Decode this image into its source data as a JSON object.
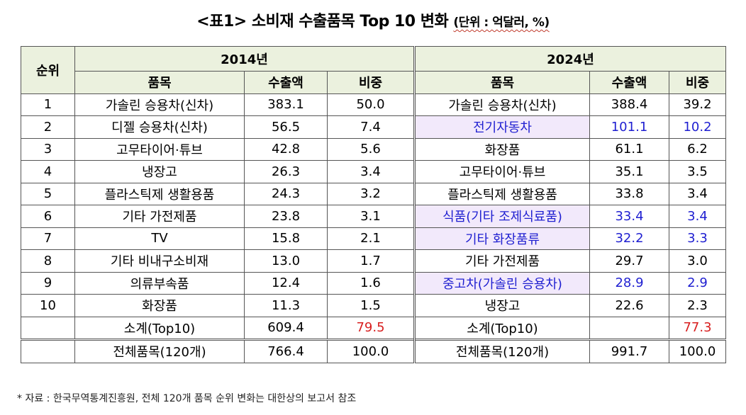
{
  "title": {
    "main": "<표1> 소비재 수출품목 Top 10 변화",
    "unit": "(단위 : 억달러, %)"
  },
  "headers": {
    "rank": "순위",
    "year_2014": "2014년",
    "year_2024": "2024년",
    "item": "품목",
    "export_amount": "수출액",
    "share": "비중"
  },
  "rows": [
    {
      "rank": "1",
      "item_2014": "가솔린 승용차(신차)",
      "amount_2014": "383.1",
      "share_2014": "50.0",
      "item_2024": "가솔린 승용차(신차)",
      "amount_2024": "388.4",
      "share_2024": "39.2"
    },
    {
      "rank": "2",
      "item_2014": "디젤 승용차(신차)",
      "amount_2014": "56.5",
      "share_2014": "7.4",
      "item_2024": "전기자동차",
      "amount_2024": "101.1",
      "share_2024": "10.2"
    },
    {
      "rank": "3",
      "item_2014": "고무타이어·튜브",
      "amount_2014": "42.8",
      "share_2014": "5.6",
      "item_2024": "화장품",
      "amount_2024": "61.1",
      "share_2024": "6.2"
    },
    {
      "rank": "4",
      "item_2014": "냉장고",
      "amount_2014": "26.3",
      "share_2014": "3.4",
      "item_2024": "고무타이어·튜브",
      "amount_2024": "35.1",
      "share_2024": "3.5"
    },
    {
      "rank": "5",
      "item_2014": "플라스틱제 생활용품",
      "amount_2014": "24.3",
      "share_2014": "3.2",
      "item_2024": "플라스틱제 생활용품",
      "amount_2024": "33.8",
      "share_2024": "3.4"
    },
    {
      "rank": "6",
      "item_2014": "기타 가전제품",
      "amount_2014": "23.8",
      "share_2014": "3.1",
      "item_2024": "식품(기타 조제식료품)",
      "amount_2024": "33.4",
      "share_2024": "3.4"
    },
    {
      "rank": "7",
      "item_2014": "TV",
      "amount_2014": "15.8",
      "share_2014": "2.1",
      "item_2024": "기타 화장품류",
      "amount_2024": "32.2",
      "share_2024": "3.3"
    },
    {
      "rank": "8",
      "item_2014": "기타 비내구소비재",
      "amount_2014": "13.0",
      "share_2014": "1.7",
      "item_2024": "기타 가전제품",
      "amount_2024": "29.7",
      "share_2024": "3.0"
    },
    {
      "rank": "9",
      "item_2014": "의류부속품",
      "amount_2014": "12.4",
      "share_2014": "1.6",
      "item_2024": "중고차(가솔린 승용차)",
      "amount_2024": "28.9",
      "share_2024": "2.9"
    },
    {
      "rank": "10",
      "item_2014": "화장품",
      "amount_2014": "11.3",
      "share_2014": "1.5",
      "item_2024": "냉장고",
      "amount_2024": "22.6",
      "share_2024": "2.3"
    }
  ],
  "subtotal": {
    "label_2014": "소계(Top10)",
    "amount_2014": "609.4",
    "share_2014": "79.5",
    "label_2024": "소계(Top10)",
    "amount_2024": "",
    "share_2024": "77.3"
  },
  "total": {
    "label_2014": "전체품목(120개)",
    "amount_2014": "766.4",
    "share_2014": "100.0",
    "label_2024": "전체품목(120개)",
    "amount_2024": "991.7",
    "share_2024": "100.0"
  },
  "note": "* 자료 : 한국무역통계진흥원, 전체 120개 품목 순위 변화는 대한상의 보고서 참조",
  "colors": {
    "header_bg": "#ebf1de",
    "highlight_bg": "#f2e9fb",
    "highlight_text": "#1f1fd1",
    "share_red": "#d81f1f"
  }
}
